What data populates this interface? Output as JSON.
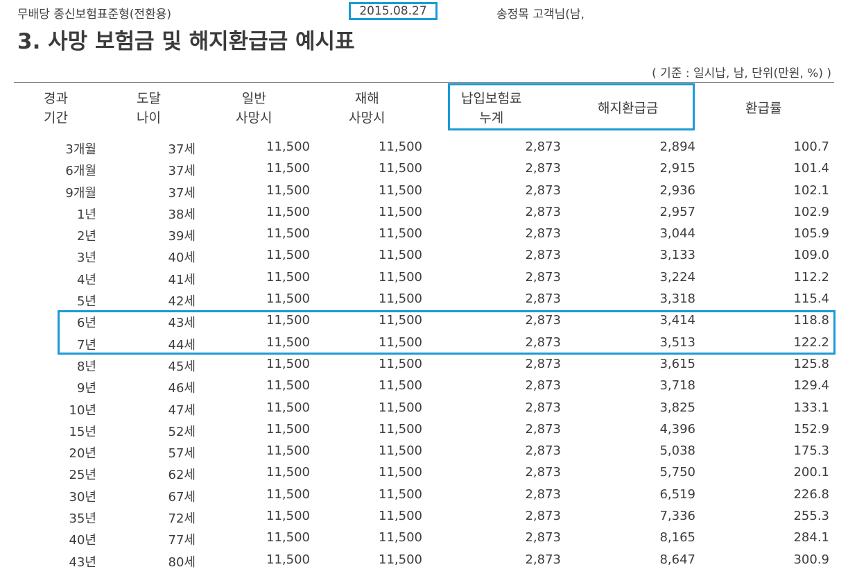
{
  "header": {
    "product_name": "무배당 종신보험표준형(전환용)",
    "date": "2015.08.27",
    "customer": "송정목 고객님(남,"
  },
  "title": "3. 사망 보험금 및 해지환급금 예시표",
  "basis_note": "( 기준 : 일시납,          남, 단위(만원, %) )",
  "columns": {
    "period": "경과\n기간",
    "age": "도달\n나이",
    "general_death": "일반\n사망시",
    "disaster_death": "재해\n사망시",
    "paid_premium_total": "납입보험료\n누계",
    "surrender_value": "해지환급금",
    "refund_rate": "환급률"
  },
  "rows": [
    {
      "period": "3개월",
      "age": "37세",
      "general": "11,500",
      "disaster": "11,500",
      "paid": "2,873",
      "surrender": "2,894",
      "rate": "100.7"
    },
    {
      "period": "6개월",
      "age": "37세",
      "general": "11,500",
      "disaster": "11,500",
      "paid": "2,873",
      "surrender": "2,915",
      "rate": "101.4"
    },
    {
      "period": "9개월",
      "age": "37세",
      "general": "11,500",
      "disaster": "11,500",
      "paid": "2,873",
      "surrender": "2,936",
      "rate": "102.1"
    },
    {
      "period": "1년",
      "age": "38세",
      "general": "11,500",
      "disaster": "11,500",
      "paid": "2,873",
      "surrender": "2,957",
      "rate": "102.9"
    },
    {
      "period": "2년",
      "age": "39세",
      "general": "11,500",
      "disaster": "11,500",
      "paid": "2,873",
      "surrender": "3,044",
      "rate": "105.9"
    },
    {
      "period": "3년",
      "age": "40세",
      "general": "11,500",
      "disaster": "11,500",
      "paid": "2,873",
      "surrender": "3,133",
      "rate": "109.0"
    },
    {
      "period": "4년",
      "age": "41세",
      "general": "11,500",
      "disaster": "11,500",
      "paid": "2,873",
      "surrender": "3,224",
      "rate": "112.2"
    },
    {
      "period": "5년",
      "age": "42세",
      "general": "11,500",
      "disaster": "11,500",
      "paid": "2,873",
      "surrender": "3,318",
      "rate": "115.4"
    },
    {
      "period": "6년",
      "age": "43세",
      "general": "11,500",
      "disaster": "11,500",
      "paid": "2,873",
      "surrender": "3,414",
      "rate": "118.8"
    },
    {
      "period": "7년",
      "age": "44세",
      "general": "11,500",
      "disaster": "11,500",
      "paid": "2,873",
      "surrender": "3,513",
      "rate": "122.2"
    },
    {
      "period": "8년",
      "age": "45세",
      "general": "11,500",
      "disaster": "11,500",
      "paid": "2,873",
      "surrender": "3,615",
      "rate": "125.8"
    },
    {
      "period": "9년",
      "age": "46세",
      "general": "11,500",
      "disaster": "11,500",
      "paid": "2,873",
      "surrender": "3,718",
      "rate": "129.4"
    },
    {
      "period": "10년",
      "age": "47세",
      "general": "11,500",
      "disaster": "11,500",
      "paid": "2,873",
      "surrender": "3,825",
      "rate": "133.1"
    },
    {
      "period": "15년",
      "age": "52세",
      "general": "11,500",
      "disaster": "11,500",
      "paid": "2,873",
      "surrender": "4,396",
      "rate": "152.9"
    },
    {
      "period": "20년",
      "age": "57세",
      "general": "11,500",
      "disaster": "11,500",
      "paid": "2,873",
      "surrender": "5,038",
      "rate": "175.3"
    },
    {
      "period": "25년",
      "age": "62세",
      "general": "11,500",
      "disaster": "11,500",
      "paid": "2,873",
      "surrender": "5,750",
      "rate": "200.1"
    },
    {
      "period": "30년",
      "age": "67세",
      "general": "11,500",
      "disaster": "11,500",
      "paid": "2,873",
      "surrender": "6,519",
      "rate": "226.8"
    },
    {
      "period": "35년",
      "age": "72세",
      "general": "11,500",
      "disaster": "11,500",
      "paid": "2,873",
      "surrender": "7,336",
      "rate": "255.3"
    },
    {
      "period": "40년",
      "age": "77세",
      "general": "11,500",
      "disaster": "11,500",
      "paid": "2,873",
      "surrender": "8,165",
      "rate": "284.1"
    },
    {
      "period": "43년",
      "age": "80세",
      "general": "11,500",
      "disaster": "11,500",
      "paid": "2,873",
      "surrender": "8,647",
      "rate": "300.9"
    }
  ],
  "highlight_color": "#1a9ad6"
}
